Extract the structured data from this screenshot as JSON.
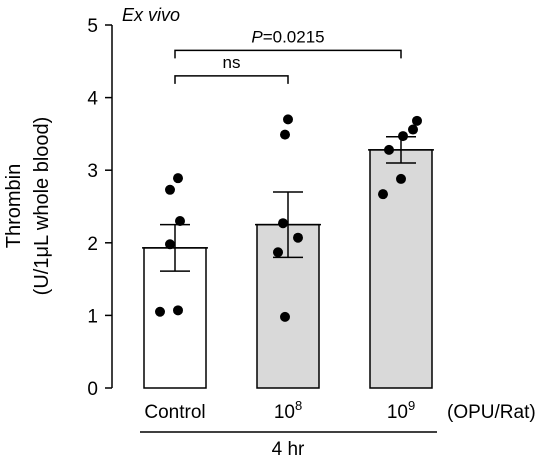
{
  "chart_data": {
    "type": "bar",
    "panel_label": "Ex vivo",
    "ylabel_line1": "Thrombin",
    "ylabel_line2": "(U/1μL whole blood)",
    "ylim": [
      0,
      5
    ],
    "yticks": [
      "0",
      "1",
      "2",
      "3",
      "4",
      "5"
    ],
    "categories": [
      {
        "base": "Control",
        "sup": ""
      },
      {
        "base": "10",
        "sup": "8"
      },
      {
        "base": "10",
        "sup": "9"
      }
    ],
    "x_unit_label": "(OPU/Rat)",
    "group_label": "4 hr",
    "bar_fill": [
      "#ffffff",
      "#d9d9d9",
      "#d9d9d9"
    ],
    "values": [
      1.93,
      2.25,
      3.28
    ],
    "error": [
      0.32,
      0.45,
      0.18
    ],
    "points": [
      [
        1.05,
        1.07,
        1.98,
        2.3,
        2.73,
        2.89
      ],
      [
        0.98,
        1.87,
        2.07,
        2.27,
        3.49,
        3.7
      ],
      [
        2.67,
        2.88,
        3.28,
        3.47,
        3.56,
        3.68
      ]
    ],
    "comparisons": [
      {
        "from": 0,
        "to": 1,
        "label_prefix": "",
        "label": "ns",
        "y": 4.3
      },
      {
        "from": 0,
        "to": 2,
        "label_prefix": "P",
        "label": "=0.0215",
        "y": 4.65
      }
    ],
    "grid": false
  }
}
